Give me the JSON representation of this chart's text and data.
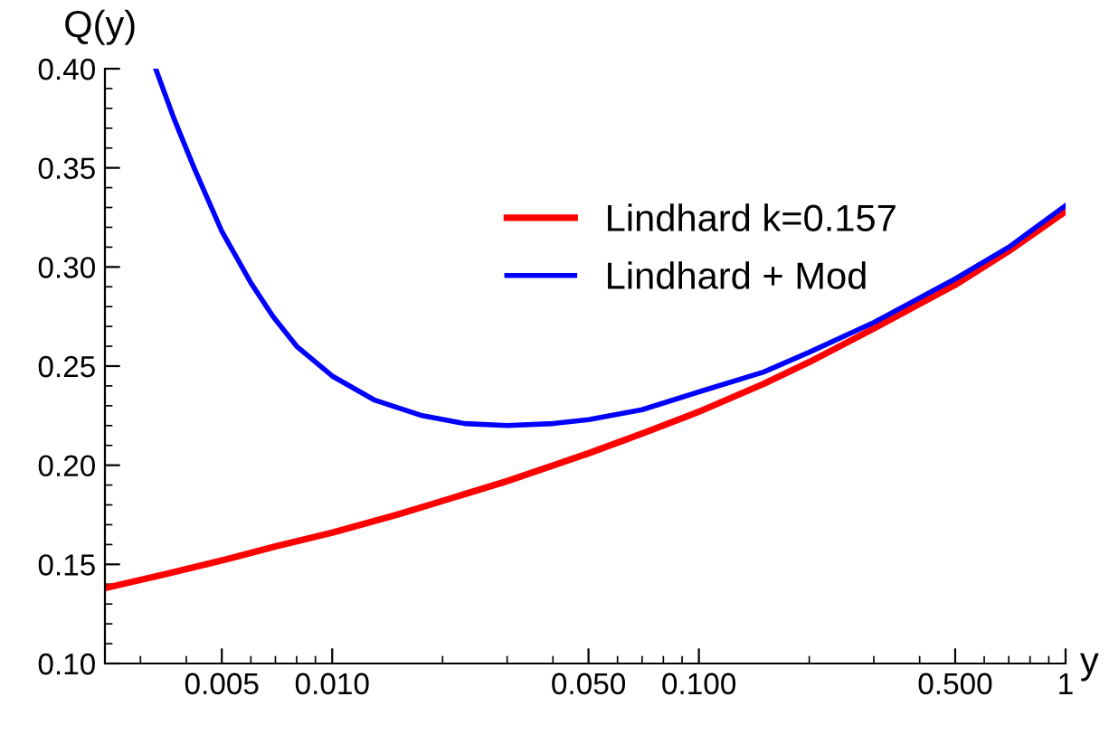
{
  "chart_data": {
    "type": "line",
    "xlabel": "y",
    "ylabel": "Q(y)",
    "log": "x",
    "grid": false,
    "legend": "top right",
    "line_style": "solid",
    "xlim": [
      0.0024,
      1
    ],
    "ylim": [
      0.1,
      0.4
    ],
    "xticks": [
      0.005,
      {
        "value": 0.01,
        "label": "0.010"
      },
      {
        "value": 0.05,
        "label": "0.050"
      },
      {
        "value": 0.1,
        "label": "0.100"
      },
      {
        "value": 0.5,
        "label": "0.500"
      },
      1
    ],
    "yticks": [
      {
        "value": 0.1,
        "label": "0.10"
      },
      0.15,
      {
        "value": 0.2,
        "label": "0.20"
      },
      0.25,
      {
        "value": 0.3,
        "label": "0.30"
      },
      0.35,
      {
        "value": 0.4,
        "label": "0.40"
      }
    ],
    "series": [
      {
        "name": "Lindhard k=0.157",
        "color": "#ff0000",
        "x": [
          0.0024,
          0.0035,
          0.005,
          0.007,
          0.01,
          0.015,
          0.02,
          0.03,
          0.05,
          0.07,
          0.1,
          0.15,
          0.2,
          0.3,
          0.5,
          0.7,
          1
        ],
        "values": [
          0.138,
          0.145,
          0.152,
          0.159,
          0.166,
          0.175,
          0.182,
          0.192,
          0.206,
          0.216,
          0.227,
          0.241,
          0.252,
          0.269,
          0.291,
          0.308,
          0.328
        ]
      },
      {
        "name": "Lindhard + Mod",
        "color": "#0000ff",
        "x": [
          0.0033,
          0.0037,
          0.0042,
          0.005,
          0.006,
          0.0069,
          0.008,
          0.01,
          0.013,
          0.0176,
          0.023,
          0.03,
          0.04,
          0.05,
          0.07,
          0.1,
          0.15,
          0.2,
          0.3,
          0.5,
          0.7,
          1
        ],
        "values": [
          0.4,
          0.375,
          0.35,
          0.318,
          0.292,
          0.275,
          0.26,
          0.245,
          0.233,
          0.225,
          0.221,
          0.22,
          0.221,
          0.223,
          0.228,
          0.237,
          0.247,
          0.257,
          0.272,
          0.294,
          0.31,
          0.331
        ]
      }
    ]
  }
}
